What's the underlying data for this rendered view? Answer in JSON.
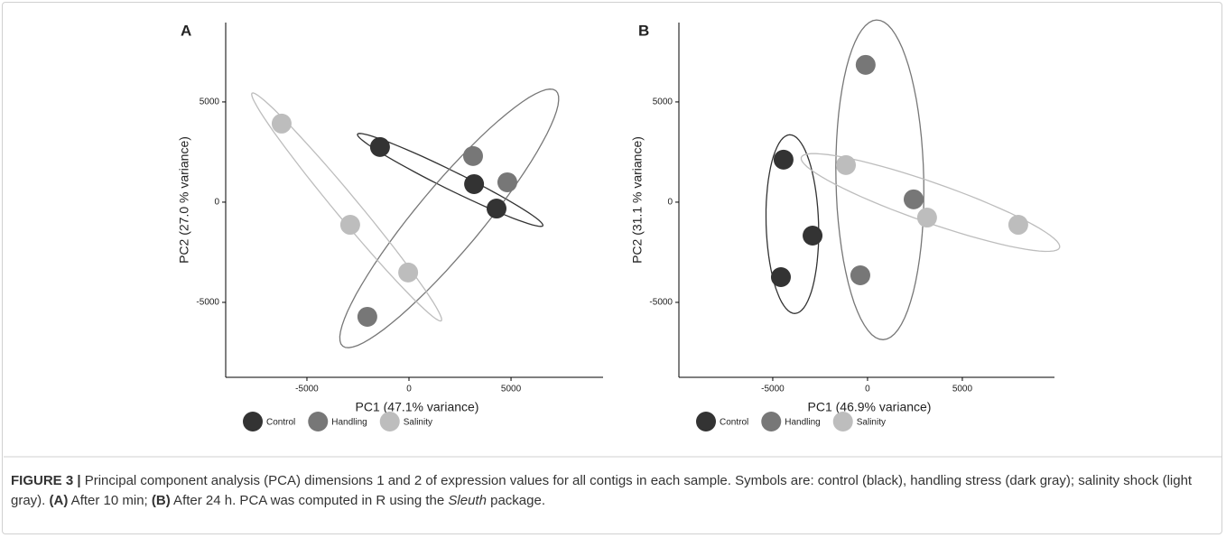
{
  "chart_data": [
    {
      "type": "scatter",
      "label": "A",
      "xlabel": "PC1 (47.1% variance)",
      "ylabel": "PC2 (27.0 % variance)",
      "xlim": [
        -8980,
        9510
      ],
      "ylim": [
        -8740,
        8960
      ],
      "xticks": [
        -5000,
        0,
        5000
      ],
      "yticks": [
        -5000,
        0,
        5000
      ],
      "legend": "bottom",
      "ellipses": true,
      "series": [
        {
          "name": "Control",
          "color": "#333333",
          "x": [
            -1420,
            3190,
            4290
          ],
          "values": [
            2750,
            900,
            -320
          ]
        },
        {
          "name": "Handling",
          "color": "#777777",
          "x": [
            3140,
            4820,
            -2040
          ],
          "values": [
            2300,
            990,
            -5720
          ]
        },
        {
          "name": "Salinity",
          "color": "#bdbdbd",
          "x": [
            -6240,
            -2880,
            -40
          ],
          "values": [
            3920,
            -1130,
            -3510
          ]
        }
      ]
    },
    {
      "type": "scatter",
      "label": "B",
      "xlabel": "PC1 (46.9% variance)",
      "ylabel": "PC2 (31.1 % variance)",
      "xlim": [
        -9950,
        9860
      ],
      "ylim": [
        -8740,
        8960
      ],
      "xticks": [
        -5000,
        0,
        5000
      ],
      "yticks": [
        -5000,
        0,
        5000
      ],
      "legend": "bottom",
      "ellipses": true,
      "series": [
        {
          "name": "Control",
          "color": "#333333",
          "x": [
            -4430,
            -2900,
            -4570
          ],
          "values": [
            2120,
            -1670,
            -3740
          ]
        },
        {
          "name": "Handling",
          "color": "#777777",
          "x": [
            -100,
            2430,
            -380
          ],
          "values": [
            6850,
            140,
            -3650
          ]
        },
        {
          "name": "Salinity",
          "color": "#bdbdbd",
          "x": [
            -1140,
            3140,
            7950
          ],
          "values": [
            1850,
            -770,
            -1130
          ]
        }
      ]
    }
  ],
  "caption": [
    {
      "text": "FIGURE 3 |",
      "style": "bold"
    },
    {
      "text": " Principal component analysis (PCA) dimensions 1 and 2 of expression values for all contigs in each sample. Symbols are: control (black), handling stress (dark gray); salinity shock (light gray). "
    },
    {
      "text": "(A)",
      "style": "bold"
    },
    {
      "text": " After 10 min; "
    },
    {
      "text": "(B)",
      "style": "bold"
    },
    {
      "text": " After 24 h. PCA was computed in R using the "
    },
    {
      "text": "Sleuth",
      "style": "italic"
    },
    {
      "text": " package."
    }
  ]
}
